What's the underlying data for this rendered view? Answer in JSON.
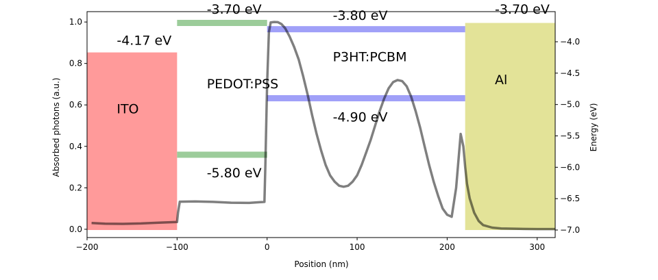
{
  "chart_data": {
    "type": "line",
    "xlabel": "Position (nm)",
    "ylabel": "Absorbed photons (a.u.)",
    "y2label": "Energy (eV)",
    "xlim": [
      -200,
      320
    ],
    "ylim": [
      -0.04,
      1.05
    ],
    "y2lim": [
      -7.12,
      -3.52
    ],
    "xticks": [
      -200,
      -100,
      0,
      100,
      200,
      300
    ],
    "yticks": [
      0.0,
      0.2,
      0.4,
      0.6,
      0.8,
      1.0
    ],
    "y2ticks": [
      -7.0,
      -6.5,
      -6.0,
      -5.5,
      -5.0,
      -4.5,
      -4.0
    ],
    "xtick_labels": [
      "−200",
      "−100",
      "0",
      "100",
      "200",
      "300"
    ],
    "ytick_labels": [
      "0.0",
      "0.2",
      "0.4",
      "0.6",
      "0.8",
      "1.0"
    ],
    "y2tick_labels": [
      "−7.0",
      "−6.5",
      "−6.0",
      "−5.5",
      "−5.0",
      "−4.5",
      "−4.0"
    ],
    "series": [
      {
        "color": "#7f7f7f",
        "x": [
          -195,
          -180,
          -160,
          -140,
          -120,
          -100,
          -99,
          -97,
          -80,
          -60,
          -40,
          -20,
          -3,
          -2,
          0,
          2,
          4,
          8,
          12,
          16,
          20,
          25,
          30,
          35,
          40,
          45,
          50,
          55,
          60,
          65,
          70,
          75,
          80,
          85,
          90,
          95,
          100,
          105,
          110,
          115,
          120,
          125,
          130,
          135,
          140,
          145,
          150,
          155,
          160,
          165,
          170,
          175,
          180,
          185,
          190,
          195,
          200,
          205,
          210,
          215,
          218,
          220,
          222,
          225,
          230,
          235,
          240,
          250,
          260,
          280,
          300,
          320
        ],
        "y": [
          0.03,
          0.027,
          0.026,
          0.028,
          0.032,
          0.035,
          0.08,
          0.133,
          0.134,
          0.132,
          0.128,
          0.127,
          0.132,
          0.3,
          0.7,
          0.95,
          0.998,
          1.0,
          0.999,
          0.99,
          0.97,
          0.93,
          0.88,
          0.82,
          0.74,
          0.65,
          0.55,
          0.46,
          0.38,
          0.31,
          0.26,
          0.23,
          0.21,
          0.205,
          0.21,
          0.23,
          0.26,
          0.31,
          0.37,
          0.43,
          0.5,
          0.57,
          0.63,
          0.68,
          0.71,
          0.72,
          0.715,
          0.69,
          0.64,
          0.57,
          0.49,
          0.4,
          0.31,
          0.23,
          0.16,
          0.1,
          0.07,
          0.06,
          0.2,
          0.46,
          0.4,
          0.3,
          0.22,
          0.15,
          0.08,
          0.04,
          0.02,
          0.008,
          0.004,
          0.002,
          0.001,
          0.001
        ]
      }
    ],
    "regions": [
      {
        "x0": -200,
        "x1": -100,
        "top_eV": -4.17,
        "color": "#ff9a9a"
      },
      {
        "x0": 220,
        "x1": 320,
        "top_eV": -3.7,
        "color": "#e3e398"
      }
    ],
    "levels": [
      {
        "x0": -100,
        "x1": 0,
        "eV": -3.7,
        "color": "#9ccc9a"
      },
      {
        "x0": -100,
        "x1": 0,
        "eV": -5.8,
        "color": "#9ccc9a"
      },
      {
        "x0": 0,
        "x1": 220,
        "eV": -3.8,
        "color": "#a0a0f8"
      },
      {
        "x0": 0,
        "x1": 220,
        "eV": -4.9,
        "color": "#a0a0f8"
      }
    ],
    "annotations": [
      {
        "key": "ito",
        "text": "ITO",
        "x": -167,
        "y": 0.56
      },
      {
        "key": "ito-wf",
        "text": "-4.17 eV",
        "x": -167,
        "y": 0.89
      },
      {
        "key": "pedot",
        "text": "PEDOT:PSS",
        "x": -67,
        "y": 0.68
      },
      {
        "key": "pedot-lumo",
        "text": "-3.70 eV",
        "x": -67,
        "y": 1.04
      },
      {
        "key": "pedot-homo",
        "text": "-5.80 eV",
        "x": -67,
        "y": 0.25
      },
      {
        "key": "p3ht",
        "text": "P3HT:PCBM",
        "x": 73,
        "y": 0.81
      },
      {
        "key": "p3ht-lumo",
        "text": "-3.80 eV",
        "x": 73,
        "y": 1.01
      },
      {
        "key": "p3ht-homo",
        "text": "-4.90 eV",
        "x": 73,
        "y": 0.52
      },
      {
        "key": "al",
        "text": "Al",
        "x": 253,
        "y": 0.7
      },
      {
        "key": "al-wf",
        "text": "-3.70 eV",
        "x": 253,
        "y": 1.04
      }
    ]
  }
}
